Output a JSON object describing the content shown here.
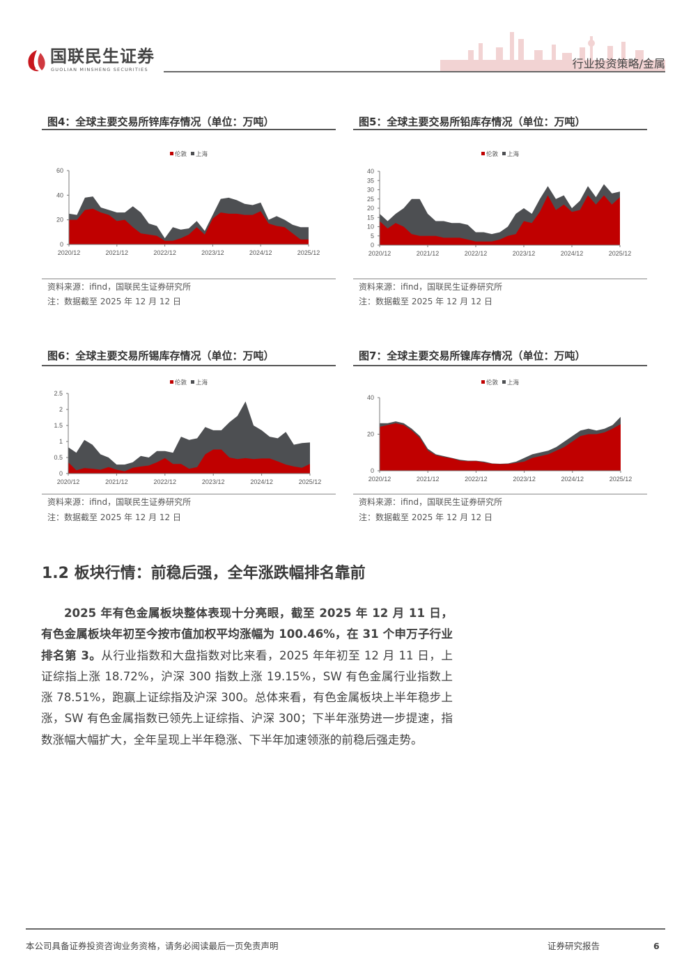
{
  "header": {
    "brand_cn": "国联民生证券",
    "brand_en": "GUOLIAN MINSHENG SECURITIES",
    "category": "行业投资策略/金属"
  },
  "colors": {
    "london": "#C00000",
    "shanghai": "#4D4F52",
    "brand_red": "#C8161D"
  },
  "figures": [
    {
      "title": "图4：全球主要交易所锌库存情况（单位：万吨）",
      "source": "资料来源：ifind，国联民生证券研究所",
      "note": "注：数据截至 2025 年 12 月 12 日"
    },
    {
      "title": "图5：全球主要交易所铅库存情况（单位：万吨）",
      "source": "资料来源：ifind，国联民生证券研究所",
      "note": "注：数据截至 2025 年 12 月 12 日"
    },
    {
      "title": "图6：全球主要交易所锡库存情况（单位：万吨）",
      "source": "资料来源：ifind，国联民生证券研究所",
      "note": "注：数据截至 2025 年 12 月 12 日"
    },
    {
      "title": "图7：全球主要交易所镍库存情况（单位：万吨）",
      "source": "资料来源：ifind，国联民生证券研究所",
      "note": "注：数据截至 2025 年 12 月 12 日"
    }
  ],
  "chart_data": [
    {
      "type": "area",
      "stacked": true,
      "title": "全球主要交易所锌库存情况",
      "unit": "万吨",
      "legend": [
        "伦敦",
        "上海"
      ],
      "legend_position": "top-center",
      "x_ticks": [
        "2020/12",
        "2021/12",
        "2022/12",
        "2023/12",
        "2024/12",
        "2025/12"
      ],
      "y_ticks": [
        "0",
        "20",
        "40",
        "60"
      ],
      "ylim": [
        0,
        60
      ],
      "x_step": "2 months, 2020/12 to 2025/12",
      "series": [
        {
          "name": "伦敦",
          "values": [
            20,
            20,
            28,
            29,
            26,
            24,
            19,
            20,
            14,
            9,
            8,
            7,
            3,
            3,
            5,
            8,
            14,
            8,
            21,
            26,
            25,
            25,
            24,
            24,
            27,
            17,
            15,
            14,
            9,
            4,
            4
          ]
        },
        {
          "name": "上海",
          "values": [
            5,
            4,
            10,
            10,
            4,
            4,
            7,
            6,
            17,
            17,
            9,
            8,
            2,
            11,
            7,
            5,
            5,
            3,
            3,
            11,
            13,
            11,
            9,
            8,
            7,
            3,
            8,
            6,
            7,
            10,
            10
          ]
        }
      ]
    },
    {
      "type": "area",
      "stacked": true,
      "title": "全球主要交易所铅库存情况",
      "unit": "万吨",
      "legend": [
        "伦敦",
        "上海"
      ],
      "legend_position": "top-center",
      "x_ticks": [
        "2020/12",
        "2021/12",
        "2022/12",
        "2023/12",
        "2024/12",
        "2025/12"
      ],
      "y_ticks": [
        "0",
        "5",
        "10",
        "15",
        "20",
        "25",
        "30",
        "35",
        "40"
      ],
      "ylim": [
        0,
        40
      ],
      "x_step": "2 months, 2020/12 to 2025/12",
      "series": [
        {
          "name": "伦敦",
          "values": [
            13,
            9,
            12,
            10,
            6,
            5,
            5,
            5,
            4,
            4,
            4,
            3,
            2,
            2,
            2,
            3,
            5,
            6,
            13,
            12,
            18,
            27,
            19,
            22,
            18,
            19,
            27,
            22,
            27,
            22,
            26
          ]
        },
        {
          "name": "上海",
          "values": [
            4,
            4,
            5,
            10,
            19,
            20,
            12,
            8,
            9,
            8,
            8,
            8,
            5,
            5,
            4,
            4,
            5,
            11,
            7,
            5,
            7,
            5,
            6,
            5,
            2,
            5,
            5,
            4,
            6,
            6,
            3
          ]
        }
      ]
    },
    {
      "type": "area",
      "stacked": true,
      "title": "全球主要交易所锡库存情况",
      "unit": "万吨",
      "legend": [
        "伦敦",
        "上海"
      ],
      "legend_position": "top-center",
      "x_ticks": [
        "2020/12",
        "2021/12",
        "2022/12",
        "2023/12",
        "2024/12",
        "2025/12"
      ],
      "y_ticks": [
        "0",
        "0.5",
        "1",
        "1.5",
        "2",
        "2.5"
      ],
      "ylim": [
        0,
        2.5
      ],
      "x_step": "2 months, 2020/12 to 2025/12",
      "series": [
        {
          "name": "伦敦",
          "values": [
            0.35,
            0.1,
            0.17,
            0.15,
            0.12,
            0.2,
            0.12,
            0.07,
            0.18,
            0.22,
            0.25,
            0.35,
            0.48,
            0.3,
            0.3,
            0.15,
            0.2,
            0.6,
            0.75,
            0.75,
            0.5,
            0.45,
            0.48,
            0.45,
            0.47,
            0.47,
            0.38,
            0.28,
            0.22,
            0.18,
            0.3
          ]
        },
        {
          "name": "上海",
          "values": [
            0.47,
            0.55,
            0.88,
            0.75,
            0.48,
            0.3,
            0.16,
            0.21,
            0.17,
            0.33,
            0.25,
            0.35,
            0.22,
            0.35,
            0.85,
            0.9,
            0.9,
            0.85,
            0.6,
            0.6,
            1.1,
            1.35,
            1.77,
            1.05,
            0.88,
            0.68,
            0.72,
            1.02,
            0.68,
            0.77,
            0.67
          ]
        }
      ]
    },
    {
      "type": "area",
      "stacked": true,
      "title": "全球主要交易所镍库存情况",
      "unit": "万吨",
      "legend": [
        "伦敦",
        "上海"
      ],
      "legend_position": "top-center",
      "x_ticks": [
        "2020/12",
        "2021/12",
        "2022/12",
        "2023/12",
        "2024/12",
        "2025/12"
      ],
      "y_ticks": [
        "0",
        "20",
        "40"
      ],
      "ylim": [
        0,
        40
      ],
      "x_step": "2 months, 2020/12 to 2025/12",
      "series": [
        {
          "name": "伦敦",
          "values": [
            24,
            25,
            26,
            25,
            22,
            18,
            11,
            8.5,
            7.5,
            6.8,
            5.5,
            5.2,
            5.3,
            4.5,
            3.8,
            3.6,
            3.7,
            4.3,
            5,
            7,
            8,
            9,
            11,
            13,
            16,
            19,
            20,
            20,
            21,
            23,
            25.5
          ]
        },
        {
          "name": "上海",
          "values": [
            2,
            1,
            1,
            1,
            1,
            1,
            1,
            0.5,
            0.5,
            0.2,
            0.5,
            0.3,
            0.2,
            0.5,
            0.2,
            0.2,
            0.3,
            0.7,
            2,
            2,
            2,
            2,
            2,
            3,
            3,
            3,
            3,
            2,
            2,
            2,
            4
          ]
        }
      ]
    }
  ],
  "section": {
    "title": "1.2  板块行情：前稳后强，全年涨跌幅排名靠前"
  },
  "paragraph": {
    "bold": "2025 年有色金属板块整体表现十分亮眼，截至 2025 年 12 月 11 日，有色金属板块年初至今按市值加权平均涨幅为 100.46%，在 31 个申万子行业排名第 3。",
    "normal": "从行业指数和大盘指数对比来看，2025 年年初至 12 月 11 日，上证综指上涨 18.72%，沪深 300 指数上涨 19.15%，SW 有色金属行业指数上涨 78.51%，跑赢上证综指及沪深 300。总体来看，有色金属板块上半年稳步上涨，SW 有色金属指数已领先上证综指、沪深 300；下半年涨势进一步提速，指数涨幅大幅扩大，全年呈现上半年稳涨、下半年加速领涨的前稳后强走势。"
  },
  "footer": {
    "disclaimer": "本公司具备证券投资咨询业务资格，请务必阅读最后一页免责声明",
    "doc_type": "证券研究报告",
    "page": "6"
  }
}
